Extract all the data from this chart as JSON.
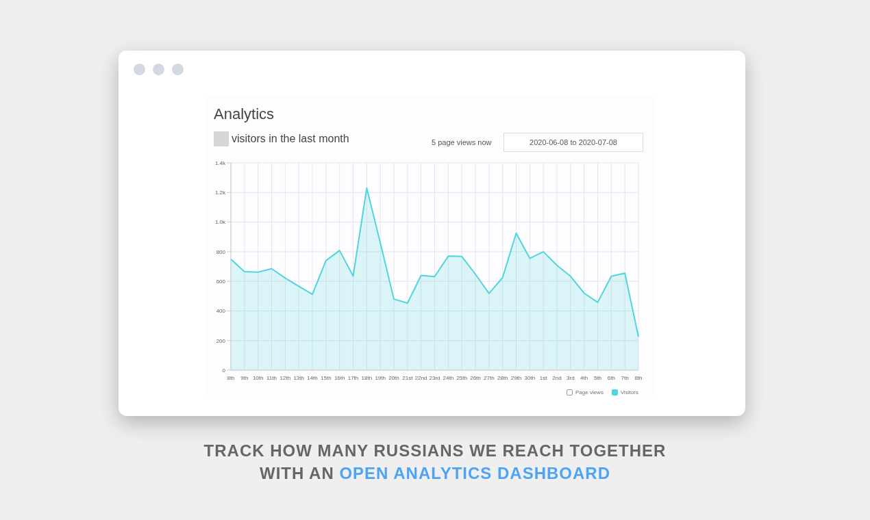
{
  "chart_data": {
    "type": "area",
    "title": "Analytics",
    "subtitle": "visitors in the last month",
    "categories": [
      "8th",
      "9th",
      "10th",
      "11th",
      "12th",
      "13th",
      "14th",
      "15th",
      "16th",
      "17th",
      "18th",
      "19th",
      "20th",
      "21st",
      "22nd",
      "23rd",
      "24th",
      "25th",
      "26th",
      "27th",
      "28th",
      "29th",
      "30th",
      "1st",
      "2nd",
      "3rd",
      "4th",
      "5th",
      "6th",
      "7th",
      "8th"
    ],
    "series": [
      {
        "name": "Visitors",
        "color": "#4fd6dc",
        "values": [
          750,
          665,
          662,
          685,
          622,
          567,
          512,
          740,
          808,
          635,
          1230,
          860,
          480,
          453,
          640,
          632,
          770,
          768,
          648,
          518,
          625,
          925,
          755,
          800,
          708,
          634,
          520,
          458,
          634,
          655,
          225
        ]
      }
    ],
    "ylim": [
      0,
      1400
    ],
    "yticks": [
      0,
      200,
      400,
      600,
      800,
      {
        "value": 1000,
        "label": "1.0k"
      },
      {
        "value": 1200,
        "label": "1.2k"
      },
      {
        "value": 1400,
        "label": "1.4k"
      }
    ],
    "grid": true,
    "legend": "bottom right",
    "marker": "none",
    "annotations": [
      "5 page views now",
      "2020-06-08 to 2020-07-08",
      "Page views",
      "TRACK HOW MANY RUSSIANS WE REACH TOGETHER WITH AN",
      "OPEN ANALYTICS DASHBOARD"
    ]
  }
}
